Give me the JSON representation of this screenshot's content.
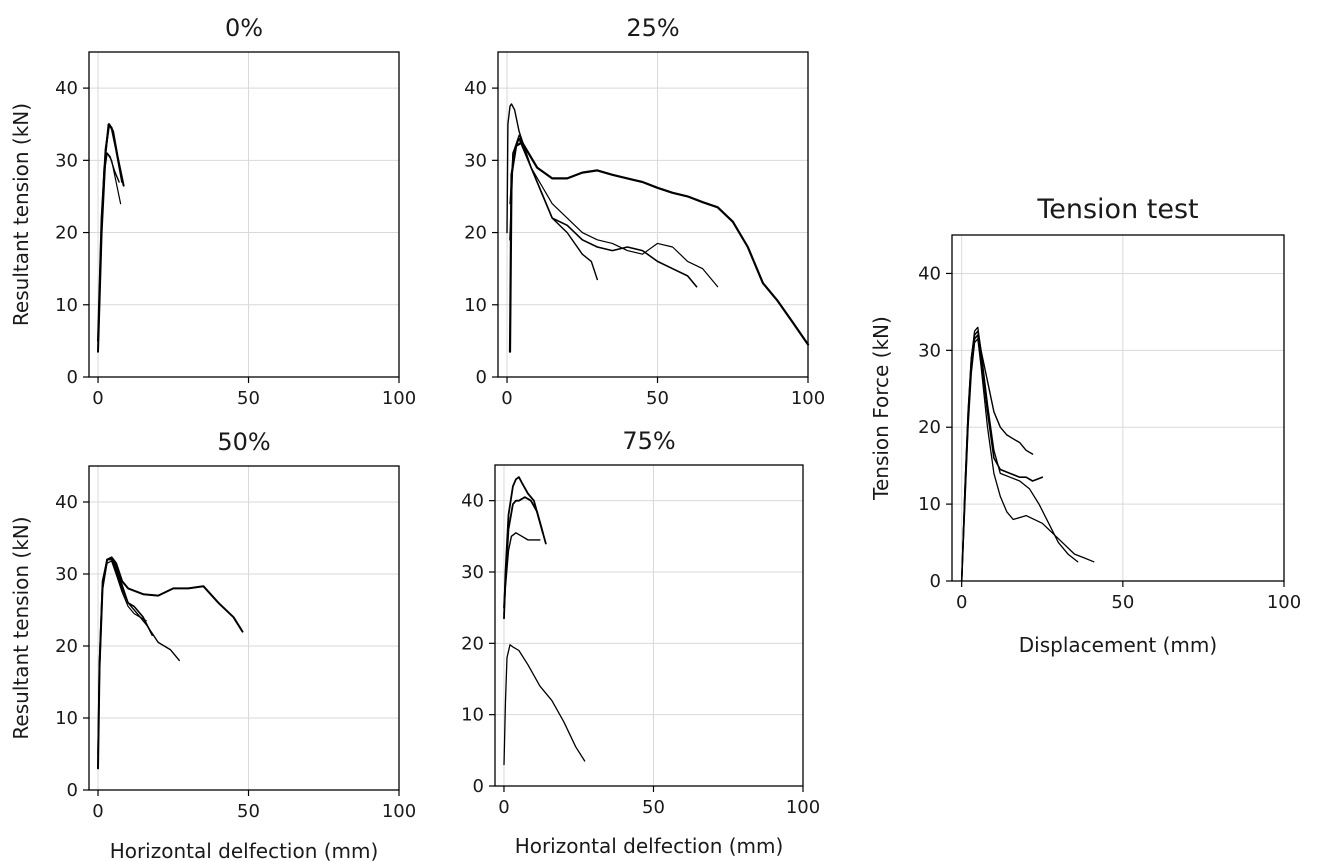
{
  "chart_data": [
    {
      "type": "line",
      "title": "0%",
      "xlabel": "",
      "ylabel": "Resultant tension (kN)",
      "xlim": [
        -3,
        100
      ],
      "ylim": [
        0,
        45
      ],
      "xticks": [
        0,
        50,
        100
      ],
      "yticks": [
        0,
        10,
        20,
        30,
        40
      ],
      "grid": true,
      "series": [
        {
          "x": [
            0,
            1.2,
            2.5,
            3.5,
            4.5,
            6,
            8
          ],
          "y": [
            3.5,
            20,
            31,
            35,
            34.5,
            31.5,
            27
          ]
        },
        {
          "x": [
            0,
            1.2,
            2.5,
            3.7,
            5,
            6.5,
            8.5
          ],
          "y": [
            5,
            22,
            31.5,
            35,
            34,
            30.5,
            26.5
          ]
        },
        {
          "x": [
            0,
            1,
            2,
            3,
            4,
            5.5,
            7
          ],
          "y": [
            4,
            19,
            28,
            31,
            30.5,
            28.5,
            27
          ]
        },
        {
          "x": [
            0,
            1,
            2,
            3,
            4.5,
            6,
            7.5
          ],
          "y": [
            5,
            20,
            29,
            31,
            30,
            27,
            24
          ]
        }
      ]
    },
    {
      "type": "line",
      "title": "25%",
      "xlabel": "",
      "ylabel": "",
      "xlim": [
        -3,
        100
      ],
      "ylim": [
        0,
        45
      ],
      "xticks": [
        0,
        50,
        100
      ],
      "yticks": [
        0,
        10,
        20,
        30,
        40
      ],
      "grid": true,
      "series": [
        {
          "x": [
            0,
            0.3,
            1,
            1.5,
            2.5,
            4,
            8,
            15,
            20,
            25,
            28,
            30
          ],
          "y": [
            20,
            35,
            37.5,
            37.8,
            37,
            34,
            29,
            22,
            20,
            17,
            16,
            13.5
          ]
        },
        {
          "x": [
            1,
            1.5,
            3,
            5,
            10,
            15,
            20,
            25,
            30,
            35,
            40,
            45,
            50,
            55,
            60,
            65,
            70,
            75,
            80,
            85,
            90,
            95,
            100
          ],
          "y": [
            3.5,
            28,
            32,
            32.5,
            29,
            27.5,
            27.5,
            28.3,
            28.6,
            28,
            27.5,
            27,
            26.2,
            25.5,
            25,
            24.2,
            23.5,
            21.5,
            18,
            13,
            10.5,
            7.5,
            4.5
          ]
        },
        {
          "x": [
            1,
            2,
            4,
            8,
            15,
            20,
            25,
            30,
            35,
            40,
            45,
            50,
            55,
            60,
            63
          ],
          "y": [
            19,
            31,
            33,
            29,
            22,
            21,
            19,
            18,
            17.5,
            18,
            17.5,
            16,
            15,
            14,
            12.5
          ]
        },
        {
          "x": [
            1,
            2,
            4,
            8,
            15,
            20,
            25,
            30,
            35,
            40,
            45,
            50,
            55,
            60,
            65,
            70
          ],
          "y": [
            24,
            31,
            33.5,
            29,
            24,
            22,
            20,
            19,
            18.5,
            17.5,
            17,
            18.5,
            18,
            16,
            15,
            12.5
          ]
        }
      ]
    },
    {
      "type": "line",
      "title": "50%",
      "xlabel": "Horizontal delfection (mm)",
      "ylabel": "Resultant tension (kN)",
      "xlim": [
        -3,
        100
      ],
      "ylim": [
        0,
        45
      ],
      "xticks": [
        0,
        50,
        100
      ],
      "yticks": [
        0,
        10,
        20,
        30,
        40
      ],
      "grid": true,
      "series": [
        {
          "x": [
            0,
            0.5,
            1.5,
            3,
            4.5,
            6,
            8,
            10,
            15,
            20,
            25,
            30,
            35,
            40,
            45,
            48
          ],
          "y": [
            3,
            17,
            28,
            32,
            32.3,
            31.5,
            29,
            28,
            27.2,
            27,
            28,
            28,
            28.3,
            26,
            24,
            22
          ]
        },
        {
          "x": [
            0,
            0.5,
            1.5,
            3,
            4.5,
            6,
            8,
            10,
            13,
            16,
            20,
            24,
            27
          ],
          "y": [
            4,
            16.5,
            28,
            32,
            32.2,
            31,
            28.5,
            26,
            24.5,
            23,
            20.5,
            19.5,
            18
          ]
        },
        {
          "x": [
            0,
            0.5,
            1.5,
            3,
            4.5,
            6,
            8,
            10,
            12,
            15,
            18
          ],
          "y": [
            5,
            18,
            29,
            32,
            32,
            30.5,
            28,
            26,
            25.5,
            24,
            21.5
          ]
        },
        {
          "x": [
            0,
            0.5,
            1.5,
            3,
            4.5,
            6,
            8,
            10,
            12,
            14,
            16
          ],
          "y": [
            3.5,
            17,
            28,
            31.5,
            31.8,
            30,
            27.5,
            25.5,
            24.5,
            24,
            23.5
          ]
        }
      ]
    },
    {
      "type": "line",
      "title": "75%",
      "xlabel": "Horizontal delfection (mm)",
      "ylabel": "",
      "xlim": [
        -3,
        100
      ],
      "ylim": [
        0,
        45
      ],
      "xticks": [
        0,
        50,
        100
      ],
      "yticks": [
        0,
        10,
        20,
        30,
        40
      ],
      "grid": true,
      "series": [
        {
          "x": [
            0,
            0.5,
            1.5,
            3,
            4,
            5,
            6,
            8,
            10,
            12,
            14
          ],
          "y": [
            23.5,
            30,
            38,
            42,
            43,
            43.3,
            42.5,
            41,
            40,
            37,
            34
          ]
        },
        {
          "x": [
            0,
            0.5,
            1.5,
            3,
            4,
            5,
            7,
            9,
            11,
            13
          ],
          "y": [
            25,
            29,
            36,
            39.5,
            40,
            40,
            40.5,
            40,
            38.5,
            35.5
          ]
        },
        {
          "x": [
            0,
            0.5,
            1.5,
            2.5,
            4,
            6,
            8,
            10,
            12
          ],
          "y": [
            24,
            28,
            33,
            35,
            35.5,
            35,
            34.5,
            34.5,
            34.5
          ]
        },
        {
          "x": [
            0,
            0.5,
            1,
            2,
            3,
            5,
            8,
            12,
            16,
            20,
            24,
            27
          ],
          "y": [
            3,
            12,
            18,
            19.8,
            19.5,
            19,
            17,
            14,
            12,
            9,
            5.5,
            3.5
          ]
        }
      ]
    },
    {
      "type": "line",
      "title": "Tension test",
      "xlabel": "Displacement (mm)",
      "ylabel": "Tension Force (kN)",
      "xlim": [
        -3,
        100
      ],
      "ylim": [
        0,
        45
      ],
      "xticks": [
        0,
        50,
        100
      ],
      "yticks": [
        0,
        10,
        20,
        30,
        40
      ],
      "grid": true,
      "series": [
        {
          "x": [
            0,
            1,
            2,
            3,
            4,
            5,
            6,
            8,
            10,
            12,
            14,
            16,
            18,
            20,
            22
          ],
          "y": [
            0,
            12,
            22,
            29,
            32,
            32.5,
            30,
            26,
            22,
            20,
            19,
            18.5,
            18,
            17,
            16.5
          ]
        },
        {
          "x": [
            0,
            1,
            2,
            3,
            4,
            5,
            6,
            8,
            10,
            12,
            15,
            18,
            20,
            22,
            25
          ],
          "y": [
            0,
            11,
            21,
            28,
            31.5,
            32,
            29,
            22,
            16,
            14.5,
            14,
            13.5,
            13.5,
            13,
            13.5
          ]
        },
        {
          "x": [
            0,
            1,
            2,
            3,
            4,
            5,
            6,
            8,
            10,
            12,
            14,
            16,
            20,
            25,
            30,
            35,
            38,
            41
          ],
          "y": [
            0,
            10,
            20,
            27,
            31,
            31.5,
            28,
            20,
            14,
            11,
            9,
            8,
            8.5,
            7.5,
            5.5,
            3.5,
            3,
            2.5
          ]
        },
        {
          "x": [
            0,
            1,
            2,
            3,
            4,
            5,
            6,
            8,
            10,
            12,
            15,
            18,
            21,
            24,
            27,
            30,
            33,
            36
          ],
          "y": [
            0,
            12,
            22,
            29,
            32.5,
            33,
            30,
            23,
            17,
            14,
            13.5,
            13,
            12,
            10,
            7.5,
            5,
            3.5,
            2.5
          ]
        }
      ]
    }
  ]
}
